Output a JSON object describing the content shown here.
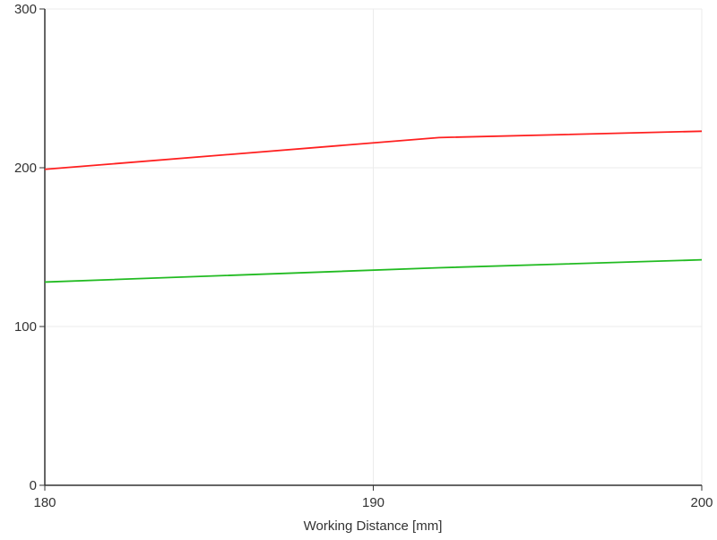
{
  "chart_data": {
    "type": "line",
    "x_label": "Working Distance [mm]",
    "x": [
      180,
      192,
      200
    ],
    "series": [
      {
        "color": "#ff2020",
        "values": [
          199,
          219,
          223
        ]
      },
      {
        "color": "#22bb22",
        "values": [
          128,
          137,
          142
        ]
      }
    ],
    "xlim": [
      180,
      200
    ],
    "xticks": [
      180,
      190,
      200
    ],
    "ylim": [
      0,
      300
    ],
    "yticks": [
      0,
      100,
      200,
      300
    ],
    "grid": true
  }
}
